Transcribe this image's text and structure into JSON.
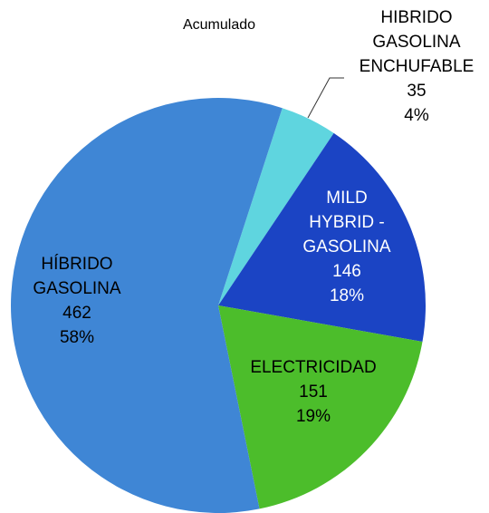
{
  "chart_data": {
    "type": "pie",
    "title": "Acumulado",
    "categories": [
      [
        "HIBRIDO",
        "GASOLINA",
        "ENCHUFABLE"
      ],
      [
        "MILD",
        "HYBRID -",
        "GASOLINA"
      ],
      [
        "ELECTRICIDAD"
      ],
      [
        "HÍBRIDO",
        "GASOLINA"
      ]
    ],
    "values": [
      35,
      146,
      151,
      462
    ],
    "percent_labels": [
      "4%",
      "18%",
      "19%",
      "58%"
    ],
    "colors": [
      "#5fd5df",
      "#1b44c4",
      "#4cbd2b",
      "#3f86d5"
    ]
  }
}
